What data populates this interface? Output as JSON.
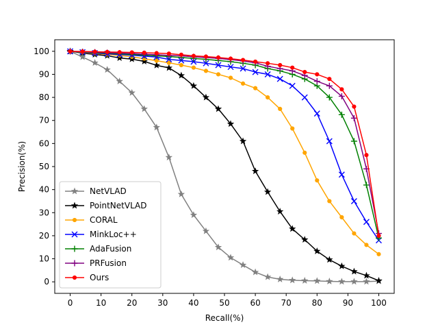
{
  "chart_data": {
    "type": "line",
    "title": "",
    "xlabel": "Recall(%)",
    "ylabel": "Precision(%)",
    "xlim": [
      -5,
      105
    ],
    "ylim": [
      -5,
      105
    ],
    "xticks": [
      0,
      10,
      20,
      30,
      40,
      50,
      60,
      70,
      80,
      90,
      100
    ],
    "yticks": [
      0,
      10,
      20,
      30,
      40,
      50,
      60,
      70,
      80,
      90,
      100
    ],
    "grid": false,
    "legend_position": "lower-left",
    "x": [
      0,
      4,
      8,
      12,
      16,
      20,
      24,
      28,
      32,
      36,
      40,
      44,
      48,
      52,
      56,
      60,
      64,
      68,
      72,
      76,
      80,
      84,
      88,
      92,
      96,
      100
    ],
    "series": [
      {
        "name": "NetVLAD",
        "color": "#808080",
        "marker": "star",
        "values": [
          100,
          97.5,
          95,
          92,
          87,
          82,
          75,
          67,
          54,
          38,
          29,
          22,
          15,
          10.5,
          7.3,
          4.2,
          2.1,
          1.1,
          0.7,
          0.5,
          0.4,
          0.2,
          0.1,
          0.1,
          0.1,
          0.3
        ]
      },
      {
        "name": "PointNetVLAD",
        "color": "#000000",
        "marker": "star",
        "values": [
          100,
          99.2,
          98.6,
          98.1,
          97.1,
          96.6,
          95.6,
          93.9,
          92.8,
          89.5,
          85,
          80,
          75,
          68.5,
          61,
          48,
          39,
          30.5,
          23,
          18.3,
          13.3,
          9.6,
          6.8,
          4.5,
          2.7,
          0.5
        ]
      },
      {
        "name": "CORAL",
        "color": "#ffa500",
        "marker": "dot",
        "values": [
          100,
          99.5,
          99,
          98.6,
          98.2,
          97.6,
          96.8,
          95.9,
          95,
          94,
          92.9,
          91.5,
          90,
          88.5,
          86,
          84,
          80,
          75,
          66.5,
          56,
          44,
          35,
          28,
          21,
          16,
          12
        ]
      },
      {
        "name": "MinkLoc++",
        "color": "#0000ff",
        "marker": "x",
        "values": [
          100,
          99.6,
          99.2,
          98.9,
          98.6,
          98.3,
          97.9,
          97.5,
          96.5,
          96,
          95.5,
          94.8,
          94,
          93.2,
          92.5,
          91,
          90,
          88,
          85,
          80,
          73,
          61,
          46.5,
          35,
          26,
          18
        ]
      },
      {
        "name": "AdaFusion",
        "color": "#008000",
        "marker": "plus",
        "values": [
          100,
          99.7,
          99.4,
          99.2,
          98.9,
          98.6,
          98.3,
          98,
          97.7,
          97.3,
          96.9,
          96.5,
          96,
          95.5,
          94.8,
          94,
          92.5,
          91.5,
          90,
          88,
          85,
          80,
          72.5,
          61,
          42,
          19
        ]
      },
      {
        "name": "PRFusion",
        "color": "#800080",
        "marker": "plus",
        "values": [
          100,
          99.8,
          99.6,
          99.4,
          99.2,
          99,
          98.7,
          98.5,
          98.2,
          98,
          97.6,
          97.3,
          96.9,
          96.4,
          95.8,
          95,
          93.5,
          92.5,
          91.5,
          89.5,
          87,
          85,
          80.5,
          71,
          49,
          21
        ]
      },
      {
        "name": "Ours",
        "color": "#ff0000",
        "marker": "dot",
        "values": [
          100,
          99.9,
          99.8,
          99.7,
          99.6,
          99.5,
          99.4,
          99.2,
          99,
          98.5,
          98,
          97.7,
          97.3,
          96.8,
          96.2,
          95.5,
          94.8,
          94,
          92.9,
          91,
          90,
          88,
          83.5,
          76,
          55,
          20
        ]
      }
    ]
  }
}
